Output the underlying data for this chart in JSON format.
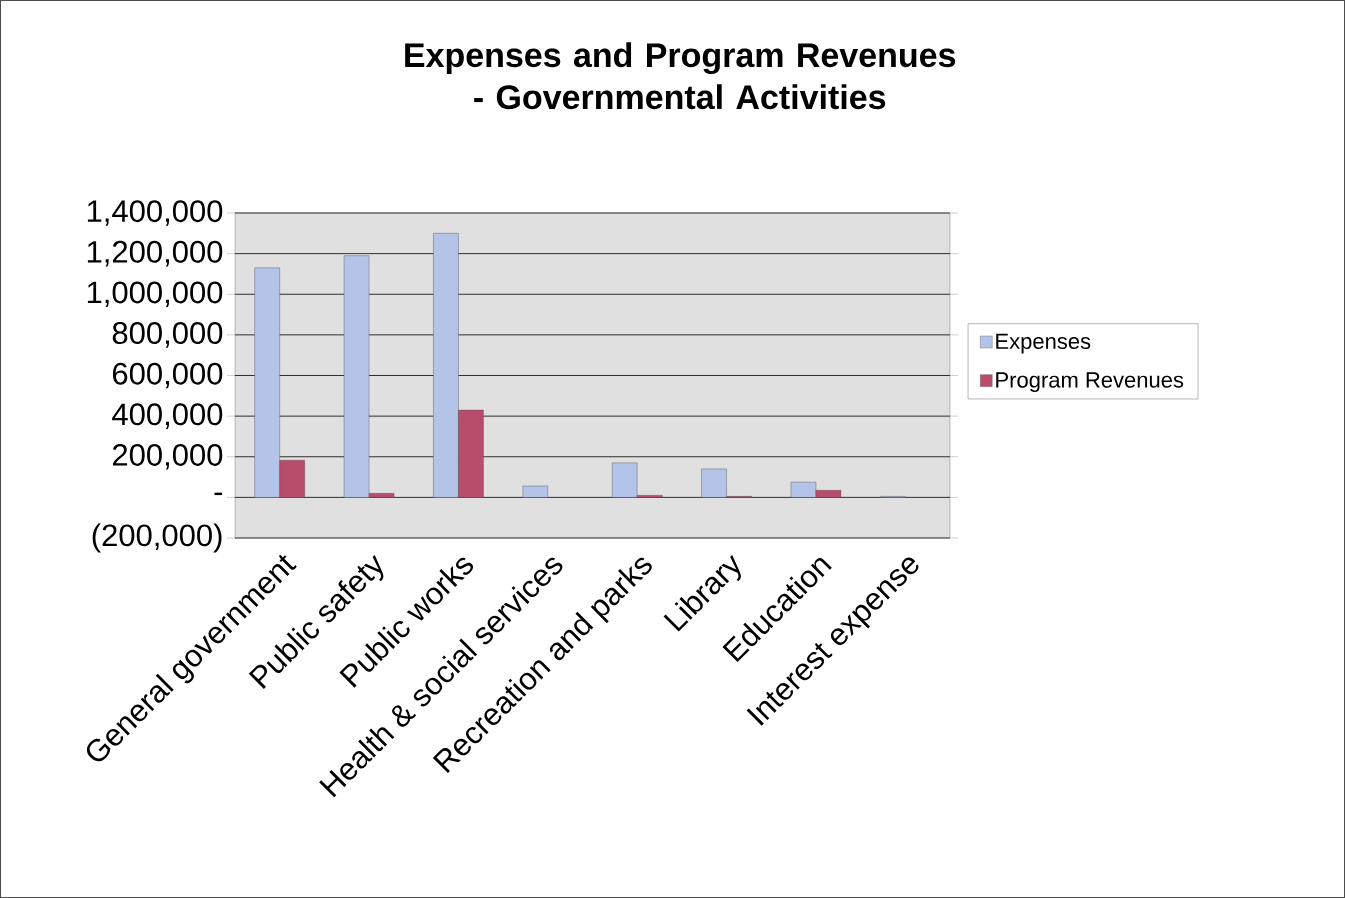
{
  "chart_data": {
    "type": "bar",
    "title": "Expenses and Program Revenues - Governmental Activities",
    "categories": [
      "General government",
      "Public safety",
      "Public works",
      "Health & social services",
      "Recreation and parks",
      "Library",
      "Education",
      "Interest expense"
    ],
    "series": [
      {
        "name": "Expenses",
        "color": "#b4c4e8",
        "values": [
          1130000,
          1190000,
          1300000,
          56000,
          170000,
          140000,
          75000,
          5000
        ]
      },
      {
        "name": "Program Revenues",
        "color": "#b84d6b",
        "values": [
          183000,
          20000,
          430000,
          null,
          10000,
          5000,
          35000,
          null
        ]
      }
    ],
    "ylim": [
      -200000,
      1400000
    ],
    "yticks": [
      {
        "value": -200000,
        "label": "(200,000)"
      },
      {
        "value": 0,
        "label": "-"
      },
      {
        "value": 200000,
        "label": "200,000"
      },
      {
        "value": 400000,
        "label": "400,000"
      },
      {
        "value": 600000,
        "label": "600,000"
      },
      {
        "value": 800000,
        "label": "800,000"
      },
      {
        "value": 1000000,
        "label": "1,000,000"
      },
      {
        "value": 1200000,
        "label": "1,200,000"
      },
      {
        "value": 1400000,
        "label": "1,400,000"
      }
    ],
    "grid": "y",
    "legend": "right"
  }
}
